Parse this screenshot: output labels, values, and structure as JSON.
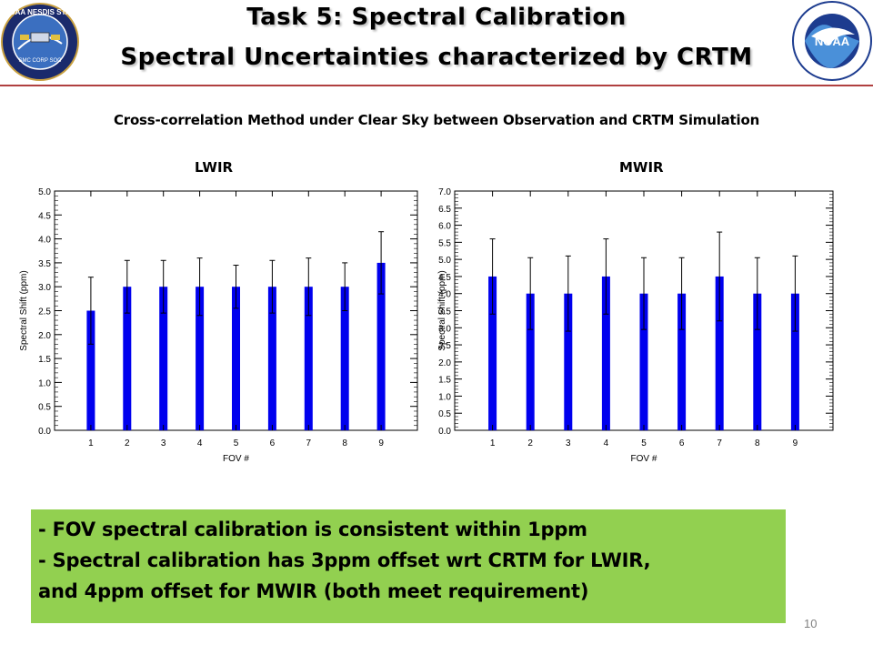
{
  "title": {
    "line1": "Task 5: Spectral Calibration",
    "line2": "Spectral Uncertainties characterized by CRTM"
  },
  "logos": {
    "left": {
      "icon": "noaa-nesdis-star-seal",
      "text": "NOAA NESDIS STAR",
      "sub": "SMC CORP SOC"
    },
    "right": {
      "icon": "noaa-seal",
      "text": "NOAA"
    }
  },
  "subtitle": "Cross-correlation Method  under Clear Sky between Observation and CRTM Simulation",
  "colors": {
    "bar": "#0000ee",
    "summary_bg": "#92d050",
    "title_rule": "#b04040"
  },
  "chart_data": [
    {
      "type": "bar",
      "title": "LWIR",
      "xlabel": "FOV #",
      "ylabel": "Spectral Shift (ppm)",
      "categories": [
        "1",
        "2",
        "3",
        "4",
        "5",
        "6",
        "7",
        "8",
        "9"
      ],
      "values": [
        2.5,
        3.0,
        3.0,
        3.0,
        3.0,
        3.0,
        3.0,
        3.0,
        3.5
      ],
      "error_upper": [
        3.2,
        3.55,
        3.55,
        3.6,
        3.45,
        3.55,
        3.6,
        3.5,
        4.15
      ],
      "error_lower": [
        1.8,
        2.45,
        2.45,
        2.4,
        2.55,
        2.45,
        2.4,
        2.5,
        2.85
      ],
      "ylim": [
        0,
        5
      ],
      "yticks": [
        "0.0",
        "0.5",
        "1.0",
        "1.5",
        "2.0",
        "2.5",
        "3.0",
        "3.5",
        "4.0",
        "4.5",
        "5.0"
      ],
      "grid": false
    },
    {
      "type": "bar",
      "title": "MWIR",
      "xlabel": "FOV #",
      "ylabel": "Spectral Shift (ppm)",
      "categories": [
        "1",
        "2",
        "3",
        "4",
        "5",
        "6",
        "7",
        "8",
        "9"
      ],
      "values": [
        4.5,
        4.0,
        4.0,
        4.5,
        4.0,
        4.0,
        4.5,
        4.0,
        4.0
      ],
      "error_upper": [
        5.6,
        5.05,
        5.1,
        5.6,
        5.05,
        5.05,
        5.8,
        5.05,
        5.1
      ],
      "error_lower": [
        3.4,
        2.95,
        2.9,
        3.4,
        2.95,
        2.95,
        3.2,
        2.95,
        2.9
      ],
      "ylim": [
        0,
        7
      ],
      "yticks": [
        "0.0",
        "0.5",
        "1.0",
        "1.5",
        "2.0",
        "2.5",
        "3.0",
        "3.5",
        "4.0",
        "4.5",
        "5.0",
        "5.5",
        "6.0",
        "6.5",
        "7.0"
      ],
      "grid": false
    }
  ],
  "summary": {
    "lines": [
      "- FOV spectral calibration is consistent within 1ppm",
      "- Spectral calibration has 3ppm offset wrt CRTM for LWIR,",
      "and 4ppm offset for MWIR (both meet requirement)"
    ]
  },
  "page_number": "10"
}
